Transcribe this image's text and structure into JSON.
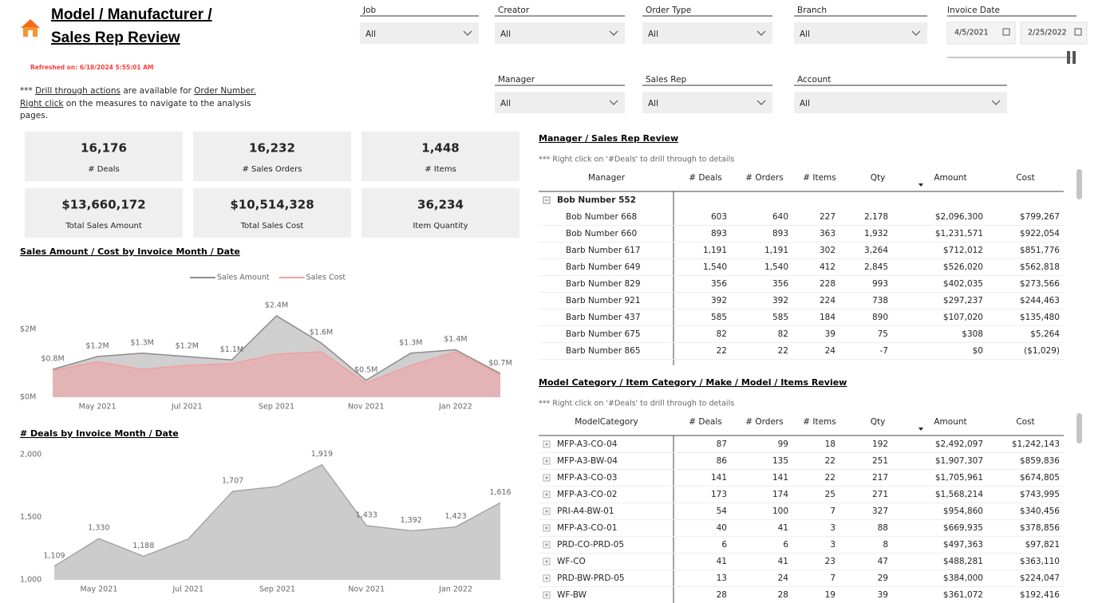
{
  "header": {
    "title_line1": "Model / Manufacturer /",
    "title_line2": "Sales Rep Review",
    "refreshed": "Refreshed on: 6/18/2024 5:55:01 AM",
    "note": [
      "***",
      "Drill through actions",
      "are available for",
      "Order Number.",
      "Right click",
      "on the measures to navigate to the analysis",
      "pages."
    ]
  },
  "filters": [
    {
      "label": "Job",
      "value": "All"
    },
    {
      "label": "Creator",
      "value": "All"
    },
    {
      "label": "Order Type",
      "value": "All"
    },
    {
      "label": "Branch",
      "value": "All"
    },
    {
      "label": "Manager",
      "value": "All"
    },
    {
      "label": "Sales Rep",
      "value": "All"
    },
    {
      "label": "Account",
      "value": "All"
    }
  ],
  "date_filter": {
    "label": "Invoice Date",
    "start": "4/5/2021",
    "end": "2/25/2022"
  },
  "kpis": [
    {
      "value": "16,176",
      "label": "# Deals"
    },
    {
      "value": "16,232",
      "label": "# Sales Orders"
    },
    {
      "value": "1,448",
      "label": "# Items"
    },
    {
      "value": "$13,660,172",
      "label": "Total Sales Amount"
    },
    {
      "value": "$10,514,328",
      "label": "Total Sales Cost"
    },
    {
      "value": "36,234",
      "label": "Item Quantity"
    }
  ],
  "chart_data": [
    {
      "type": "area",
      "title": "Sales Amount / Cost by Invoice Month / Date",
      "categories": [
        null,
        "May 2021",
        null,
        "Jul 2021",
        null,
        "Sep 2021",
        null,
        "Nov 2021",
        null,
        "Jan 2022",
        null
      ],
      "series": [
        {
          "name": "Sales Amount",
          "color": "#8c8c8c",
          "fill": "#cfcfcf",
          "values": [
            820000,
            1200000,
            1300000,
            1200000,
            1100000,
            2400000,
            1600000,
            500000,
            1300000,
            1400000,
            700000
          ],
          "value_labels": [
            "$0.8M",
            "$1.2M",
            "$1.3M",
            "$1.2M",
            "$1.1M",
            "$2.4M",
            "$1.6M",
            "$0.5M",
            "$1.3M",
            "$1.4M",
            "$0.7M"
          ]
        },
        {
          "name": "Sales Cost",
          "color": "#f0a0a0",
          "fill": "#e3b4b5",
          "values": [
            780000,
            1050000,
            820000,
            940000,
            990000,
            1270000,
            1340000,
            420000,
            940000,
            1340000,
            660000
          ]
        }
      ],
      "ylim": [
        0,
        2800000
      ],
      "yticks": [
        {
          "value": 0,
          "label": "$0M"
        },
        {
          "value": 2000000,
          "label": "$2M"
        }
      ]
    },
    {
      "type": "area",
      "title": "# Deals by Invoice Month / Date",
      "categories": [
        null,
        "May 2021",
        null,
        "Jul 2021",
        null,
        "Sep 2021",
        null,
        "Nov 2021",
        null,
        "Jan 2022",
        null
      ],
      "values": [
        1109,
        1330,
        1188,
        1325,
        1707,
        1745,
        1919,
        1433,
        1392,
        1423,
        1616
      ],
      "value_labels": [
        "1,109",
        "1,330",
        "1,188",
        null,
        "1,707",
        null,
        "1,919",
        "1,433",
        "1,392",
        "1,423",
        "1,616"
      ],
      "color": "#a6a6a6",
      "fill": "#cccccc",
      "ylim": [
        1000,
        2000
      ],
      "yticks": [
        {
          "value": 1000,
          "label": "1,000"
        },
        {
          "value": 1500,
          "label": "1,500"
        },
        {
          "value": 2000,
          "label": "2,000"
        }
      ]
    }
  ],
  "tables": [
    {
      "title": "Manager / Sales Rep Review",
      "note": "*** Right click on '#Deals' to drill through to details",
      "columns": [
        "Manager",
        "# Deals",
        "# Orders",
        "# Items",
        "Qty",
        "Amount",
        "Cost"
      ],
      "group": "Bob Number 552",
      "rows": [
        [
          "Bob Number 668",
          "603",
          "640",
          "227",
          "2,178",
          "$2,096,300",
          "$799,267"
        ],
        [
          "Bob Number 660",
          "893",
          "893",
          "363",
          "1,932",
          "$1,231,571",
          "$922,054"
        ],
        [
          "Barb Number 617",
          "1,191",
          "1,191",
          "302",
          "3,264",
          "$712,012",
          "$851,776"
        ],
        [
          "Barb Number 649",
          "1,540",
          "1,540",
          "412",
          "2,845",
          "$526,020",
          "$562,818"
        ],
        [
          "Barb Number 829",
          "356",
          "356",
          "228",
          "993",
          "$402,035",
          "$273,566"
        ],
        [
          "Barb Number 921",
          "392",
          "392",
          "224",
          "738",
          "$297,237",
          "$244,463"
        ],
        [
          "Barb Number 437",
          "585",
          "585",
          "184",
          "890",
          "$107,020",
          "$135,480"
        ],
        [
          "Barb Number 675",
          "82",
          "82",
          "39",
          "75",
          "$308",
          "$5,264"
        ],
        [
          "Barb Number 865",
          "22",
          "22",
          "24",
          "-7",
          "$0",
          "($1,029)"
        ]
      ]
    },
    {
      "title": "Model Category / Item Category / Make / Model / Items Review",
      "note": "*** Right click on '#Deals' to drill through to details",
      "columns": [
        "ModelCategory",
        "# Deals",
        "# Orders",
        "# Items",
        "Qty",
        "Amount",
        "Cost"
      ],
      "rows": [
        [
          "MFP-A3-CO-04",
          "87",
          "99",
          "18",
          "192",
          "$2,492,097",
          "$1,242,143"
        ],
        [
          "MFP-A3-BW-04",
          "86",
          "135",
          "22",
          "251",
          "$1,907,307",
          "$859,836"
        ],
        [
          "MFP-A3-CO-03",
          "141",
          "141",
          "22",
          "217",
          "$1,705,961",
          "$674,805"
        ],
        [
          "MFP-A3-CO-02",
          "173",
          "174",
          "25",
          "271",
          "$1,568,214",
          "$743,995"
        ],
        [
          "PRI-A4-BW-01",
          "54",
          "100",
          "7",
          "327",
          "$954,860",
          "$340,456"
        ],
        [
          "MFP-A3-CO-01",
          "40",
          "41",
          "3",
          "88",
          "$669,935",
          "$378,856"
        ],
        [
          "PRD-CO-PRD-05",
          "6",
          "6",
          "3",
          "8",
          "$497,363",
          "$97,821"
        ],
        [
          "WF-CO",
          "41",
          "41",
          "23",
          "47",
          "$488,281",
          "$363,110"
        ],
        [
          "PRD-BW-PRD-05",
          "13",
          "24",
          "7",
          "29",
          "$384,000",
          "$224,047"
        ],
        [
          "WF-BW",
          "28",
          "28",
          "19",
          "39",
          "$361,072",
          "$192,416"
        ]
      ]
    }
  ]
}
